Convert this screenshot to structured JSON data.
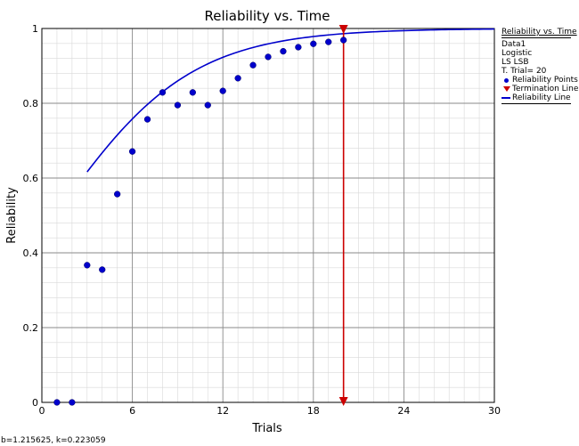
{
  "chart_data": {
    "type": "scatter",
    "title": "Reliability vs. Time",
    "xlabel": "Trials",
    "ylabel": "Reliability",
    "xlim": [
      0,
      30
    ],
    "ylim": [
      0,
      1
    ],
    "x_ticks": [
      0,
      6,
      12,
      18,
      24,
      30
    ],
    "x_tick_labels": [
      "0",
      "6",
      "12",
      "18",
      "24",
      "30"
    ],
    "y_ticks": [
      0,
      0.2,
      0.4,
      0.6,
      0.8,
      1
    ],
    "y_tick_labels": [
      "0",
      "0.2",
      "0.4",
      "0.6",
      "0.8",
      "1"
    ],
    "grid": true,
    "series": [
      {
        "name": "Reliability Points",
        "kind": "scatter",
        "color": "#0000cc",
        "x": [
          1,
          2,
          3,
          4,
          5,
          6,
          7,
          8,
          9,
          10,
          11,
          12,
          13,
          14,
          15,
          16,
          17,
          18,
          19,
          20
        ],
        "y": [
          0.0,
          0.0,
          0.367,
          0.355,
          0.557,
          0.671,
          0.757,
          0.829,
          0.795,
          0.829,
          0.795,
          0.833,
          0.867,
          0.902,
          0.924,
          0.939,
          0.95,
          0.959,
          0.964,
          0.969
        ]
      },
      {
        "name": "Reliability Line",
        "kind": "line",
        "color": "#0000cc",
        "model": "logistic",
        "params": {
          "b": 1.215625,
          "k": 0.223059
        },
        "x_start": 3,
        "x_end": 30
      },
      {
        "name": "Termination Line",
        "kind": "vline",
        "color": "#cc0000",
        "x": 20
      }
    ]
  },
  "legend": {
    "title": "Reliability vs. Time",
    "info": [
      "Data1",
      "Logistic",
      "LS LSB",
      "T. Trial= 20"
    ],
    "entries": [
      "Reliability Points",
      "Termination Line",
      "Reliability Line"
    ]
  },
  "footer": "b=1.215625, k=0.223059"
}
